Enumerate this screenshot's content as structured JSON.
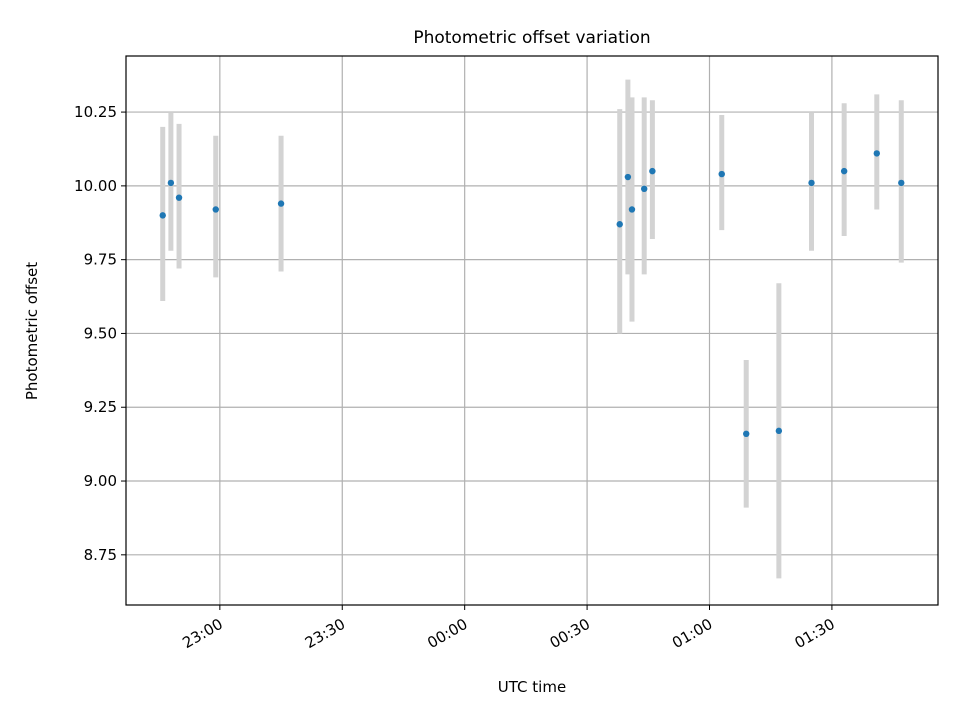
{
  "chart_data": {
    "type": "scatter",
    "title": "Photometric offset variation",
    "xlabel": "UTC time",
    "ylabel": "Photometric offset",
    "x_axis_kind": "time",
    "xlim": [
      "22:37",
      "01:56"
    ],
    "ylim": [
      8.58,
      10.44
    ],
    "x_ticks": [
      "23:00",
      "23:30",
      "00:00",
      "00:30",
      "01:00",
      "01:30"
    ],
    "y_ticks": [
      8.75,
      9.0,
      9.25,
      9.5,
      9.75,
      10.0,
      10.25
    ],
    "y_tick_labels": [
      "8.75",
      "9.00",
      "9.25",
      "9.50",
      "9.75",
      "10.00",
      "10.25"
    ],
    "grid": true,
    "legend": false,
    "series": [
      {
        "marker_color": "#1f77b4",
        "errorbar_color": "#d3d3d3",
        "points": [
          {
            "x": "22:46",
            "y": 9.9,
            "ylow": 9.61,
            "yhigh": 10.2
          },
          {
            "x": "22:48",
            "y": 10.01,
            "ylow": 9.78,
            "yhigh": 10.25
          },
          {
            "x": "22:50",
            "y": 9.96,
            "ylow": 9.72,
            "yhigh": 10.21
          },
          {
            "x": "22:59",
            "y": 9.92,
            "ylow": 9.69,
            "yhigh": 10.17
          },
          {
            "x": "23:15",
            "y": 9.94,
            "ylow": 9.71,
            "yhigh": 10.17
          },
          {
            "x": "00:38",
            "y": 9.87,
            "ylow": 9.5,
            "yhigh": 10.26
          },
          {
            "x": "00:40",
            "y": 10.03,
            "ylow": 9.7,
            "yhigh": 10.36
          },
          {
            "x": "00:41",
            "y": 9.92,
            "ylow": 9.54,
            "yhigh": 10.3
          },
          {
            "x": "00:44",
            "y": 9.99,
            "ylow": 9.7,
            "yhigh": 10.3
          },
          {
            "x": "00:46",
            "y": 10.05,
            "ylow": 9.82,
            "yhigh": 10.29
          },
          {
            "x": "01:03",
            "y": 10.04,
            "ylow": 9.85,
            "yhigh": 10.24
          },
          {
            "x": "01:09",
            "y": 9.16,
            "ylow": 8.91,
            "yhigh": 9.41
          },
          {
            "x": "01:17",
            "y": 9.17,
            "ylow": 8.67,
            "yhigh": 9.67
          },
          {
            "x": "01:25",
            "y": 10.01,
            "ylow": 9.78,
            "yhigh": 10.25
          },
          {
            "x": "01:33",
            "y": 10.05,
            "ylow": 9.83,
            "yhigh": 10.28
          },
          {
            "x": "01:41",
            "y": 10.11,
            "ylow": 9.92,
            "yhigh": 10.31
          },
          {
            "x": "01:47",
            "y": 10.01,
            "ylow": 9.74,
            "yhigh": 10.29
          }
        ]
      }
    ]
  }
}
